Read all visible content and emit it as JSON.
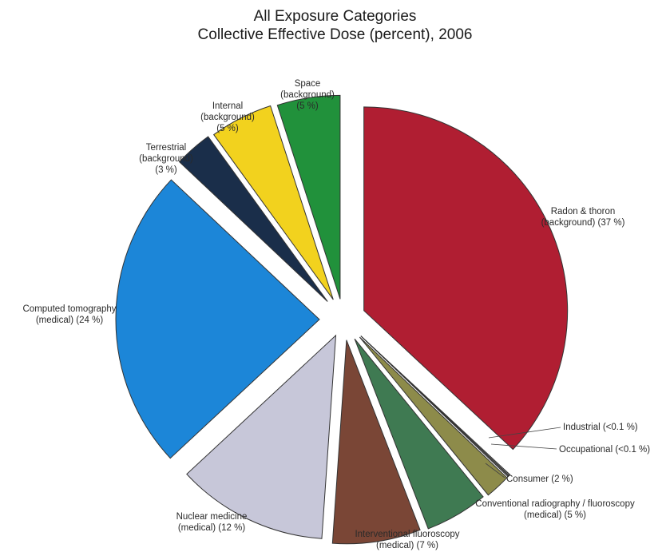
{
  "chart_data": {
    "type": "pie",
    "title": "All Exposure Categories",
    "subtitle": "Collective Effective Dose (percent), 2006",
    "slices": [
      {
        "key": "radon",
        "line1": "Radon & thoron",
        "line2": "(background) (37 %)",
        "value": 37,
        "color": "#b01e32"
      },
      {
        "key": "industrial",
        "line1": "Industrial (<0.1 %)",
        "line2": "",
        "value": 0.1,
        "color": "#8c8c8c"
      },
      {
        "key": "occupational",
        "line1": "Occupational (<0.1 %)",
        "line2": "",
        "value": 0.1,
        "color": "#6e6e6e"
      },
      {
        "key": "consumer",
        "line1": "Consumer (2 %)",
        "line2": "",
        "value": 2,
        "color": "#8d8b4a"
      },
      {
        "key": "radiography",
        "line1": "Conventional radiography / fluoroscopy",
        "line2": "(medical) (5 %)",
        "value": 5,
        "color": "#3f7a52"
      },
      {
        "key": "interventional",
        "line1": "Interventional fluoroscopy",
        "line2": "(medical) (7 %)",
        "value": 7,
        "color": "#7a4636"
      },
      {
        "key": "nuclear",
        "line1": "Nuclear medicine",
        "line2": "(medical) (12 %)",
        "value": 12,
        "color": "#c7c7d9"
      },
      {
        "key": "ct",
        "line1": "Computed tomography",
        "line2": "(medical) (24 %)",
        "value": 24,
        "color": "#1c86d8"
      },
      {
        "key": "terrestrial",
        "line1": "Terrestrial",
        "line2": "(background)",
        "line3": "(3 %)",
        "value": 3,
        "color": "#1a2e4a"
      },
      {
        "key": "internal",
        "line1": "Internal",
        "line2": "(background)",
        "line3": "(5 %)",
        "value": 5,
        "color": "#f2d21e"
      },
      {
        "key": "space",
        "line1": "Space",
        "line2": "(background)",
        "line3": "(5 %)",
        "value": 5,
        "color": "#21913b"
      }
    ]
  }
}
